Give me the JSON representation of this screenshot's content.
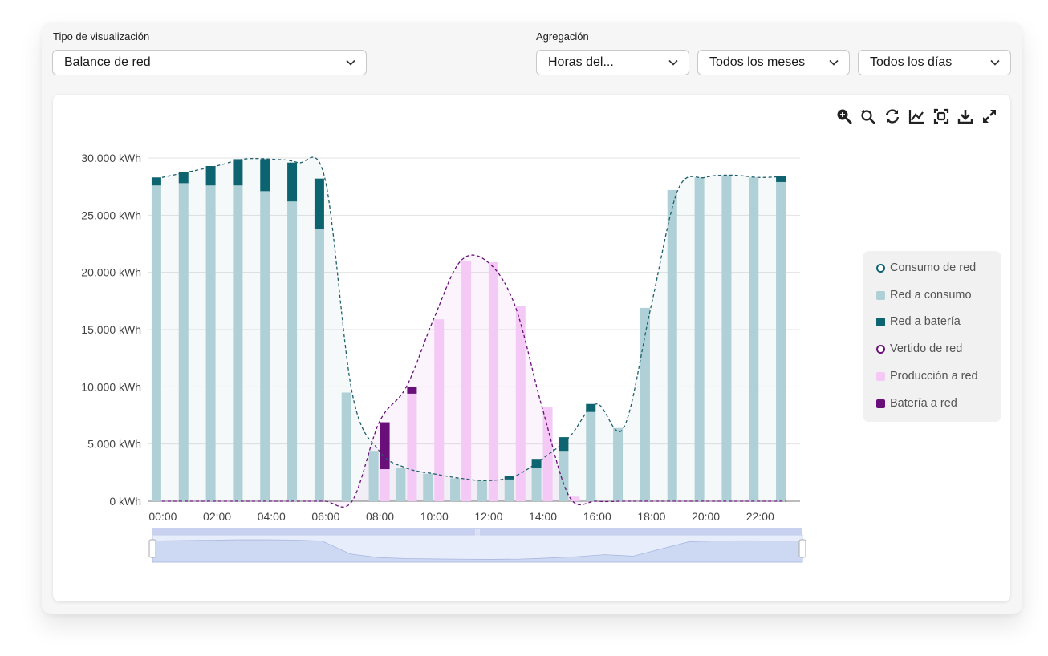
{
  "filters": {
    "view_type_label": "Tipo de visualización",
    "view_type_value": "Balance de red",
    "aggregation_label": "Agregación",
    "hours_value": "Horas del...",
    "months_value": "Todos los meses",
    "days_value": "Todos los días"
  },
  "toolbar": [
    "zoom-icon",
    "zoom-reset-icon",
    "refresh-icon",
    "chart-toggle-icon",
    "screenshot-icon",
    "download-icon",
    "fullscreen-icon"
  ],
  "colors": {
    "consumo_line": "#1f5f6b",
    "red_consumo": "#aed0d6",
    "red_bateria": "#0c6470",
    "vertido_line": "#6a0f7a",
    "produccion_red": "#f4c9f6",
    "bateria_red": "#6a0f7a",
    "zoom_bar": "#c8d2f0"
  },
  "legend": [
    {
      "label": "Consumo de red",
      "shape": "circle",
      "color": "#0c6470"
    },
    {
      "label": "Red a consumo",
      "shape": "square",
      "color": "#aed0d6"
    },
    {
      "label": "Red a batería",
      "shape": "square",
      "color": "#0c6470"
    },
    {
      "label": "Vertido de red",
      "shape": "circle",
      "color": "#6a0f7a"
    },
    {
      "label": "Producción a red",
      "shape": "square",
      "color": "#f4c9f6"
    },
    {
      "label": "Batería a red",
      "shape": "square",
      "color": "#6a0f7a"
    }
  ],
  "chart_data": {
    "type": "bar",
    "stacked": true,
    "title": "",
    "xlabel": "",
    "ylabel": "",
    "ylim": [
      0,
      30000
    ],
    "y_ticks": [
      "0 kWh",
      "5.000 kWh",
      "10.000 kWh",
      "15.000 kWh",
      "20.000 kWh",
      "25.000 kWh",
      "30.000 kWh"
    ],
    "y_tick_values": [
      0,
      5000,
      10000,
      15000,
      20000,
      25000,
      30000
    ],
    "x_tick_labels": [
      "00:00",
      "02:00",
      "04:00",
      "06:00",
      "08:00",
      "10:00",
      "12:00",
      "14:00",
      "16:00",
      "18:00",
      "20:00",
      "22:00"
    ],
    "categories": [
      "00:00",
      "01:00",
      "02:00",
      "03:00",
      "04:00",
      "05:00",
      "06:00",
      "07:00",
      "08:00",
      "09:00",
      "10:00",
      "11:00",
      "12:00",
      "13:00",
      "14:00",
      "15:00",
      "16:00",
      "17:00",
      "18:00",
      "19:00",
      "20:00",
      "21:00",
      "22:00",
      "23:00"
    ],
    "series": [
      {
        "name": "Red a consumo",
        "group": "consumo",
        "values": [
          27600,
          27800,
          27600,
          27600,
          27100,
          26200,
          23800,
          9500,
          4400,
          2900,
          2400,
          2000,
          1800,
          1900,
          2900,
          4400,
          7800,
          6400,
          16900,
          27200,
          28300,
          28500,
          28300,
          27900
        ]
      },
      {
        "name": "Red a batería",
        "group": "consumo",
        "values": [
          700,
          1000,
          1700,
          2300,
          2800,
          3400,
          4400,
          0,
          0,
          0,
          0,
          0,
          0,
          300,
          800,
          1200,
          700,
          0,
          0,
          0,
          0,
          0,
          0,
          500
        ]
      },
      {
        "name": "Producción a red",
        "group": "vertido",
        "values": [
          0,
          0,
          0,
          0,
          0,
          0,
          0,
          0,
          2800,
          9400,
          15900,
          21000,
          20900,
          17100,
          8200,
          400,
          0,
          0,
          0,
          0,
          0,
          0,
          0,
          0
        ]
      },
      {
        "name": "Batería a red",
        "group": "vertido",
        "values": [
          0,
          0,
          0,
          0,
          0,
          0,
          0,
          0,
          4100,
          600,
          0,
          0,
          0,
          0,
          0,
          0,
          0,
          0,
          0,
          0,
          0,
          0,
          0,
          0
        ]
      }
    ],
    "lines": [
      {
        "name": "Consumo de red",
        "style": "dashed",
        "values": [
          28300,
          28800,
          29300,
          29900,
          29900,
          29600,
          28200,
          9500,
          4400,
          2900,
          2400,
          2000,
          1800,
          2200,
          3700,
          5600,
          8500,
          6400,
          16900,
          27200,
          28300,
          28500,
          28300,
          28400
        ]
      },
      {
        "name": "Vertido de red",
        "style": "dashed",
        "values": [
          0,
          0,
          0,
          0,
          0,
          0,
          0,
          0,
          6900,
          10000,
          15900,
          21000,
          20900,
          17100,
          8200,
          400,
          0,
          0,
          0,
          0,
          0,
          0,
          0,
          0
        ]
      }
    ],
    "grid": true,
    "legend_position": "right",
    "data_zoom": {
      "start": 0,
      "end": 100
    }
  }
}
